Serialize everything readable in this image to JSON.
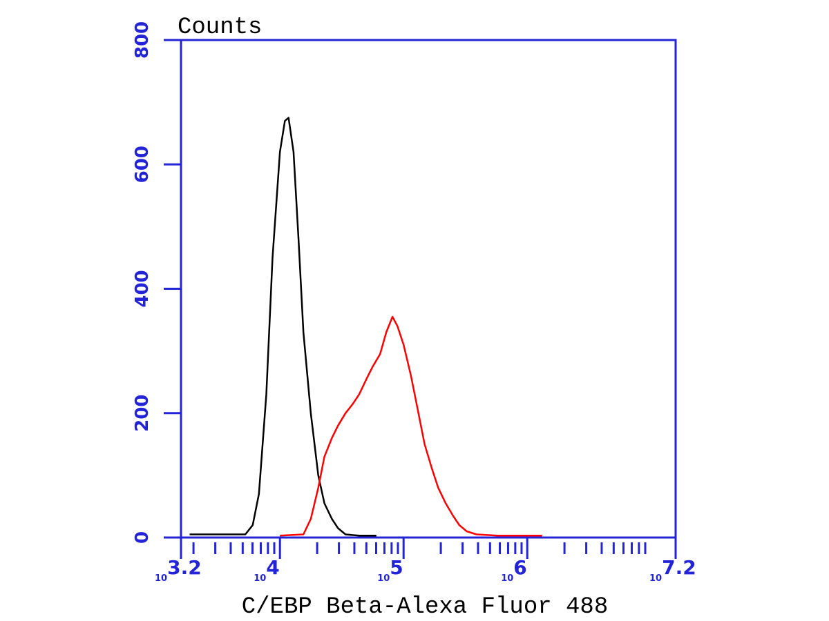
{
  "chart_data": {
    "type": "line",
    "y_label": "Counts",
    "x_label": "C/EBP Beta-Alexa Fluor 488",
    "x_tick_base": "10",
    "xlim": [
      3.2,
      7.2
    ],
    "xticks": [
      3.2,
      4,
      5,
      6,
      7.2
    ],
    "x_minor_ticks": true,
    "ylim": [
      0,
      800
    ],
    "yticks": [
      0,
      200,
      400,
      600,
      800
    ],
    "axis_color": "#2323d8",
    "series": [
      {
        "color": "#000000",
        "x": [
          3.27,
          3.5,
          3.72,
          3.78,
          3.83,
          3.89,
          3.94,
          4.0,
          4.04,
          4.07,
          4.11,
          4.15,
          4.19,
          4.25,
          4.31,
          4.36,
          4.42,
          4.47,
          4.53,
          4.64,
          4.78
        ],
        "values": [
          5,
          5,
          5,
          20,
          70,
          230,
          450,
          620,
          670,
          675,
          620,
          480,
          330,
          200,
          100,
          55,
          30,
          15,
          5,
          3,
          3
        ]
      },
      {
        "color": "#ff0000",
        "x": [
          4.0,
          4.19,
          4.25,
          4.31,
          4.36,
          4.42,
          4.47,
          4.53,
          4.59,
          4.64,
          4.7,
          4.75,
          4.81,
          4.86,
          4.91,
          4.95,
          5.0,
          5.06,
          5.12,
          5.17,
          5.23,
          5.28,
          5.34,
          5.4,
          5.45,
          5.51,
          5.59,
          5.76,
          5.98,
          6.12
        ],
        "values": [
          3,
          5,
          30,
          80,
          130,
          160,
          180,
          200,
          215,
          230,
          255,
          275,
          295,
          330,
          355,
          340,
          310,
          260,
          200,
          150,
          110,
          80,
          55,
          35,
          20,
          10,
          5,
          3,
          3,
          3
        ]
      }
    ]
  }
}
